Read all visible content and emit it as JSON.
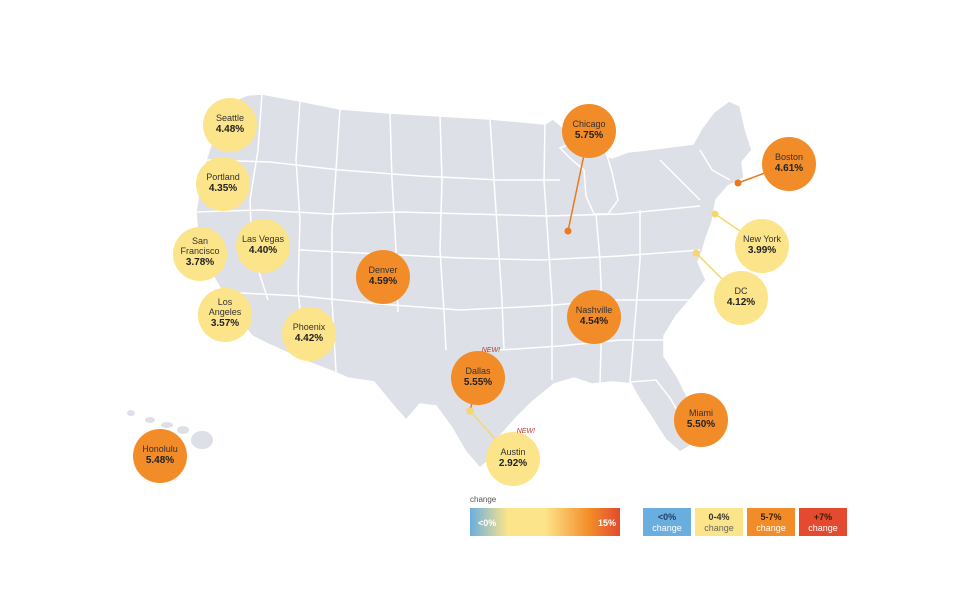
{
  "colors": {
    "land": "#dde0e6",
    "border": "#ffffff",
    "negative": "#6aaee0",
    "low": "#fce48a",
    "mid": "#f28c28",
    "high": "#e34a2f",
    "leader_low": "#f5d76e",
    "leader_mid": "#e87a1f"
  },
  "cities": [
    {
      "name": "Seattle",
      "value": "4.48%",
      "category": "low"
    },
    {
      "name": "Portland",
      "value": "4.35%",
      "category": "low"
    },
    {
      "name": "San\nFrancisco",
      "value": "3.78%",
      "category": "low"
    },
    {
      "name": "Las Vegas",
      "value": "4.40%",
      "category": "low"
    },
    {
      "name": "Los\nAngeles",
      "value": "3.57%",
      "category": "low"
    },
    {
      "name": "Phoenix",
      "value": "4.42%",
      "category": "low"
    },
    {
      "name": "Denver",
      "value": "4.59%",
      "category": "mid"
    },
    {
      "name": "Chicago",
      "value": "5.75%",
      "category": "mid"
    },
    {
      "name": "Boston",
      "value": "4.61%",
      "category": "mid"
    },
    {
      "name": "New York",
      "value": "3.99%",
      "category": "low"
    },
    {
      "name": "DC",
      "value": "4.12%",
      "category": "low"
    },
    {
      "name": "Nashville",
      "value": "4.54%",
      "category": "mid"
    },
    {
      "name": "Dallas",
      "value": "5.55%",
      "category": "mid",
      "tag": "NEW!"
    },
    {
      "name": "Austin",
      "value": "2.92%",
      "category": "low",
      "tag": "NEW!"
    },
    {
      "name": "Miami",
      "value": "5.50%",
      "category": "mid"
    },
    {
      "name": "Honolulu",
      "value": "5.48%",
      "category": "mid"
    }
  ],
  "legend": {
    "title": "change",
    "gradient_low_label": "<0%",
    "gradient_high_label": "15%",
    "boxes": [
      {
        "top": "<0%",
        "bottom": "change",
        "category": "negative"
      },
      {
        "top": "0-4%",
        "bottom": "change",
        "category": "low"
      },
      {
        "top": "5-7%",
        "bottom": "change",
        "category": "mid"
      },
      {
        "top": "+7%",
        "bottom": "change",
        "category": "high"
      }
    ]
  }
}
